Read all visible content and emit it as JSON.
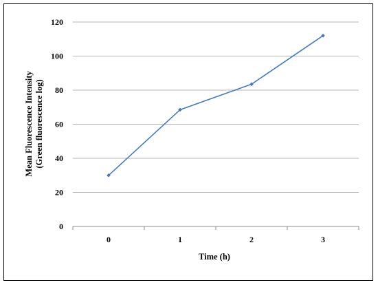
{
  "chart_data": {
    "type": "line",
    "x": [
      0,
      1,
      2,
      3
    ],
    "series": [
      {
        "values": [
          30,
          68.5,
          83.5,
          112
        ]
      }
    ],
    "xlabel": "Time (h)",
    "ylabel": [
      "Mean Fluorescence Intensity",
      "(Green fluorescence log)"
    ],
    "ylim": [
      0,
      120
    ],
    "yticks": [
      0,
      20,
      40,
      60,
      80,
      100,
      120
    ],
    "xticks": [
      "0",
      "1",
      "2",
      "3"
    ],
    "grid": "horizontal",
    "legend": "none",
    "colors": {
      "line": "#4a7ab5",
      "grid": "#b5b5b5",
      "axis": "#8c8c8c",
      "marker": "#4a7ab5"
    }
  }
}
